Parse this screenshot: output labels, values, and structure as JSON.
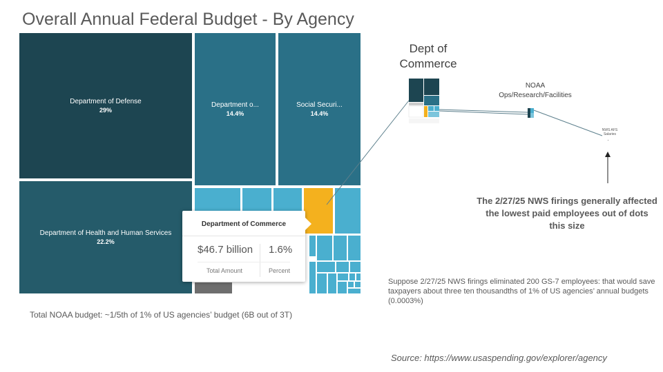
{
  "title": "Overall Annual Federal Budget - By Agency",
  "colors": {
    "defense": "#1d4551",
    "hhs": "#255b6a",
    "medium": "#2a7087",
    "light": "#4aafcf",
    "commerce": "#f4b11e",
    "gray": "#6e6e6e"
  },
  "chart_data": {
    "type": "treemap",
    "title": "Overall Annual Federal Budget - By Agency",
    "items": [
      {
        "label": "Department of Defense",
        "percent": "29%",
        "value": 29
      },
      {
        "label": "Department of Health and Human Services",
        "percent": "22.2%",
        "value": 22.2
      },
      {
        "label": "Department o...",
        "percent": "14.4%",
        "value": 14.4
      },
      {
        "label": "Social Securi...",
        "percent": "14.4%",
        "value": 14.4
      },
      {
        "label": "Department of Commerce",
        "percent": "1.6%",
        "value": 1.6,
        "highlighted": true
      }
    ]
  },
  "tooltip": {
    "title": "Department of Commerce",
    "amount": "$46.7 billion",
    "percent": "1.6%",
    "amount_label": "Total Amount",
    "percent_label": "Percent"
  },
  "zoom_labels": {
    "commerce": "Dept of Commerce",
    "noaa_line1": "NOAA",
    "noaa_line2": "Ops/Research/Facilities",
    "nws_line1": "NWS AFS",
    "nws_line2": "Salaries"
  },
  "notes": {
    "firings": "The 2/27/25 NWS firings generally affected the lowest paid employees out of dots this size",
    "savings": "Suppose 2/27/25 NWS firings eliminated 200 GS-7 employees: that would save taxpayers about three ten thousandths of 1% of US agencies’ annual budgets (0.0003%)",
    "noaa_budget": "Total NOAA budget: ~1/5th of 1% of US agencies’ budget (6B out of 3T)",
    "source": "Source: https://www.usaspending.gov/explorer/agency"
  }
}
